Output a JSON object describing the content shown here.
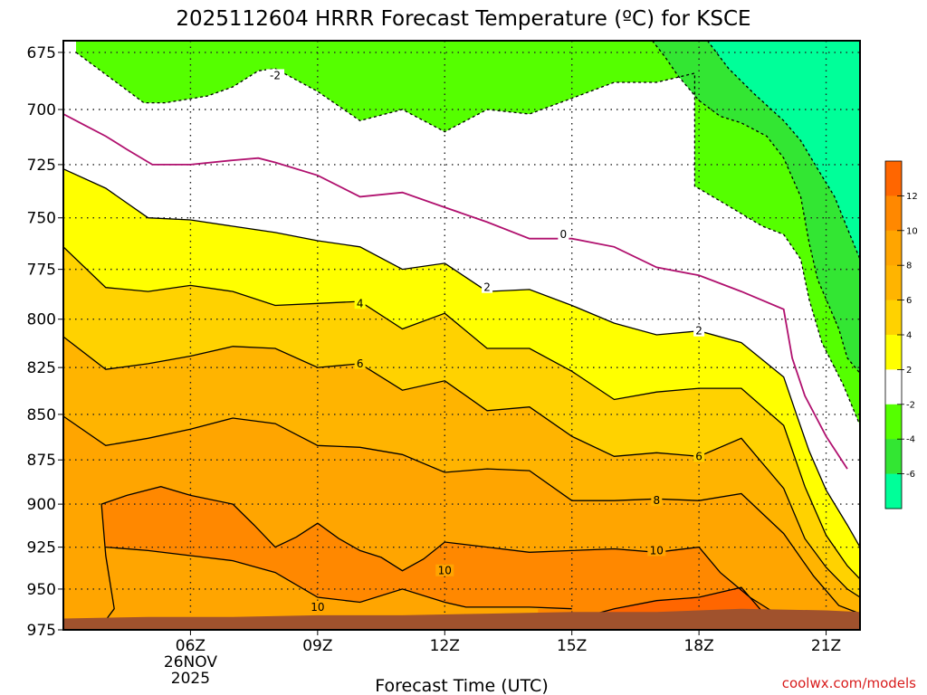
{
  "chart_data": {
    "type": "contour",
    "title": "2025112604 HRRR Forecast Temperature (ºC) for KSCE",
    "xlabel": "Forecast Time (UTC)",
    "ylabel": "",
    "credit": "coolwx.com/models",
    "x_hours": [
      3,
      4,
      5,
      6,
      7,
      8,
      9,
      10,
      11,
      12,
      13,
      14,
      15,
      16,
      17,
      18,
      19,
      20,
      21,
      22
    ],
    "x_ticks": [
      {
        "hour": 6,
        "label": "06Z",
        "date_line1": "26NOV",
        "date_line2": "2025"
      },
      {
        "hour": 9,
        "label": "09Z"
      },
      {
        "hour": 12,
        "label": "12Z"
      },
      {
        "hour": 15,
        "label": "15Z"
      },
      {
        "hour": 18,
        "label": "18Z"
      },
      {
        "hour": 21,
        "label": "21Z"
      }
    ],
    "xlim": [
      3,
      21.8
    ],
    "pressure_levels": [
      675,
      700,
      725,
      750,
      775,
      800,
      825,
      850,
      875,
      900,
      925,
      950,
      975
    ],
    "ylim": [
      975,
      670
    ],
    "y_axis": "pressure (hPa), log scale, inverted",
    "grid": true,
    "color_scale": [
      {
        "min": 12,
        "max": 14,
        "color": "#ff6600"
      },
      {
        "min": 10,
        "max": 12,
        "color": "#ff8800"
      },
      {
        "min": 8,
        "max": 10,
        "color": "#ffa500"
      },
      {
        "min": 6,
        "max": 8,
        "color": "#ffb400"
      },
      {
        "min": 4,
        "max": 6,
        "color": "#ffd200"
      },
      {
        "min": 2,
        "max": 4,
        "color": "#ffff00"
      },
      {
        "min": -2,
        "max": 2,
        "color": "#ffffff"
      },
      {
        "min": -4,
        "max": -2,
        "color": "#55ff00"
      },
      {
        "min": -6,
        "max": -4,
        "color": "#33e633"
      },
      {
        "min": -8,
        "max": -6,
        "color": "#00ff99"
      }
    ],
    "colorbar_ticks": [
      "12",
      "10",
      "8",
      "6",
      "4",
      "2",
      "-2",
      "-4",
      "-6"
    ],
    "colorbar_tick_values": [
      12,
      10,
      8,
      6,
      4,
      2,
      -2,
      -4,
      -6
    ],
    "contour_colors": {
      "zero": "#b0106e",
      "positive": "#000000",
      "negative": "#000000"
    },
    "contours": [
      {
        "value": -2,
        "label": "-2",
        "dashed": true,
        "label_at": [
          8,
          685
        ],
        "points": [
          [
            3.3,
            675
          ],
          [
            4.9,
            697
          ],
          [
            5.4,
            697
          ],
          [
            6.4,
            694
          ],
          [
            7,
            690
          ],
          [
            7.6,
            683
          ],
          [
            8,
            682
          ],
          [
            9,
            692
          ],
          [
            10,
            705
          ],
          [
            11,
            700
          ],
          [
            12,
            710
          ],
          [
            13,
            700
          ],
          [
            14,
            702
          ],
          [
            15,
            695
          ],
          [
            16,
            688
          ],
          [
            17,
            688
          ],
          [
            17.9,
            684
          ],
          [
            17.9,
            735
          ],
          [
            18.5,
            742
          ],
          [
            19,
            748
          ],
          [
            19.5,
            754
          ],
          [
            20,
            758
          ],
          [
            20.4,
            770
          ],
          [
            20.6,
            790
          ],
          [
            20.9,
            812
          ],
          [
            21.4,
            834
          ],
          [
            21.8,
            856
          ]
        ]
      },
      {
        "value": -4,
        "label": "",
        "dashed": true,
        "points": [
          [
            16.9,
            670
          ],
          [
            17.2,
            677
          ],
          [
            17.5,
            685
          ],
          [
            18,
            696
          ],
          [
            18.5,
            703
          ],
          [
            19,
            706
          ],
          [
            19.6,
            712
          ],
          [
            20,
            722
          ],
          [
            20.4,
            740
          ],
          [
            20.6,
            762
          ],
          [
            20.8,
            780
          ],
          [
            21.3,
            805
          ],
          [
            21.5,
            820
          ],
          [
            21.8,
            828
          ]
        ]
      },
      {
        "value": -6,
        "label": "",
        "dashed": true,
        "points": [
          [
            18.2,
            670
          ],
          [
            18.7,
            682
          ],
          [
            19.3,
            693
          ],
          [
            20,
            705
          ],
          [
            20.4,
            714
          ],
          [
            20.8,
            727
          ],
          [
            21.2,
            740
          ],
          [
            21.5,
            755
          ],
          [
            21.8,
            770
          ]
        ]
      },
      {
        "value": 0,
        "label": "0",
        "dashed": false,
        "label_at": [
          14.8,
          758
        ],
        "points": [
          [
            3,
            702
          ],
          [
            3.5,
            707
          ],
          [
            4,
            712
          ],
          [
            4.5,
            718
          ],
          [
            5.1,
            725
          ],
          [
            6,
            725
          ],
          [
            7,
            723
          ],
          [
            7.6,
            722
          ],
          [
            8,
            724
          ],
          [
            9,
            730
          ],
          [
            10,
            740
          ],
          [
            11,
            738
          ],
          [
            12,
            745
          ],
          [
            13,
            752
          ],
          [
            14,
            760
          ],
          [
            15,
            760
          ],
          [
            16,
            764
          ],
          [
            17,
            774
          ],
          [
            18,
            778
          ],
          [
            19,
            786
          ],
          [
            20,
            795
          ],
          [
            20.2,
            820
          ],
          [
            20.5,
            840
          ],
          [
            21,
            862
          ],
          [
            21.5,
            880
          ]
        ]
      },
      {
        "value": 2,
        "label": "2",
        "dashed": false,
        "label_at": [
          [
            13,
            784
          ],
          [
            18,
            806
          ]
        ],
        "points": [
          [
            3,
            727
          ],
          [
            4,
            736
          ],
          [
            5,
            750
          ],
          [
            6,
            751
          ],
          [
            7,
            754
          ],
          [
            8,
            757
          ],
          [
            9,
            761
          ],
          [
            10,
            764
          ],
          [
            11,
            775
          ],
          [
            12,
            772
          ],
          [
            13,
            786
          ],
          [
            14,
            785
          ],
          [
            15,
            793
          ],
          [
            16,
            802
          ],
          [
            17,
            808
          ],
          [
            18,
            806
          ],
          [
            19,
            812
          ],
          [
            20,
            830
          ],
          [
            20.3,
            850
          ],
          [
            20.6,
            870
          ],
          [
            21,
            892
          ],
          [
            21.5,
            912
          ],
          [
            21.8,
            925
          ]
        ]
      },
      {
        "value": 4,
        "label": "4",
        "dashed": false,
        "label_at": [
          10,
          792
        ],
        "points": [
          [
            3,
            764
          ],
          [
            4,
            784
          ],
          [
            5,
            786
          ],
          [
            6,
            783
          ],
          [
            7,
            786
          ],
          [
            8,
            793
          ],
          [
            9,
            792
          ],
          [
            10,
            791
          ],
          [
            11,
            805
          ],
          [
            12,
            797
          ],
          [
            13,
            815
          ],
          [
            14,
            815
          ],
          [
            15,
            827
          ],
          [
            16,
            842
          ],
          [
            17,
            838
          ],
          [
            18,
            836
          ],
          [
            19,
            836
          ],
          [
            20,
            856
          ],
          [
            20.5,
            890
          ],
          [
            21,
            918
          ],
          [
            21.5,
            936
          ],
          [
            21.8,
            944
          ]
        ]
      },
      {
        "value": 6,
        "label": "6",
        "dashed": false,
        "label_at": [
          [
            10,
            823
          ],
          [
            18,
            873
          ]
        ],
        "points": [
          [
            3,
            809
          ],
          [
            4,
            826
          ],
          [
            5,
            823
          ],
          [
            6,
            819
          ],
          [
            7,
            814
          ],
          [
            8,
            815
          ],
          [
            9,
            825
          ],
          [
            10,
            823
          ],
          [
            11,
            837
          ],
          [
            12,
            832
          ],
          [
            13,
            848
          ],
          [
            14,
            846
          ],
          [
            15,
            862
          ],
          [
            16,
            873
          ],
          [
            17,
            871
          ],
          [
            18,
            873
          ],
          [
            19,
            863
          ],
          [
            20,
            891
          ],
          [
            20.5,
            920
          ],
          [
            21,
            937
          ],
          [
            21.5,
            950
          ],
          [
            21.8,
            955
          ]
        ]
      },
      {
        "value": 8,
        "label": "8",
        "dashed": false,
        "label_at": [
          17,
          898
        ],
        "points": [
          [
            3,
            851
          ],
          [
            4,
            867
          ],
          [
            5,
            863
          ],
          [
            6,
            858
          ],
          [
            7,
            852
          ],
          [
            8,
            855
          ],
          [
            9,
            867
          ],
          [
            10,
            868
          ],
          [
            11,
            872
          ],
          [
            12,
            882
          ],
          [
            13,
            880
          ],
          [
            14,
            881
          ],
          [
            15,
            898
          ],
          [
            16,
            898
          ],
          [
            17,
            897
          ],
          [
            18,
            898
          ],
          [
            19,
            894
          ],
          [
            20,
            917
          ],
          [
            20.7,
            942
          ],
          [
            21.3,
            960
          ],
          [
            21.8,
            965
          ]
        ]
      },
      {
        "value": 10,
        "label": "10",
        "dashed": false,
        "label_at": [
          [
            12,
            939
          ],
          [
            17,
            927
          ],
          [
            9,
            961
          ]
        ],
        "points": [
          [
            3,
            971
          ],
          [
            4,
            969
          ],
          [
            4.2,
            962
          ],
          [
            4.0,
            930
          ],
          [
            3.9,
            900
          ],
          [
            4.5,
            895
          ],
          [
            5.3,
            890
          ],
          [
            6,
            895
          ],
          [
            7,
            900
          ],
          [
            7.5,
            912
          ],
          [
            8,
            925
          ],
          [
            8.5,
            919
          ],
          [
            9,
            911
          ],
          [
            9.5,
            920
          ],
          [
            10,
            927
          ],
          [
            10.5,
            931
          ],
          [
            11,
            939
          ],
          [
            11.5,
            932
          ],
          [
            12,
            922
          ],
          [
            13,
            925
          ],
          [
            14,
            928
          ],
          [
            15,
            927
          ],
          [
            16,
            926
          ],
          [
            17,
            928
          ],
          [
            18,
            925
          ],
          [
            18.5,
            940
          ],
          [
            19.2,
            955
          ],
          [
            20,
            968
          ],
          [
            21,
            975
          ],
          [
            21.8,
            975
          ]
        ]
      },
      {
        "value": 10.01,
        "label": "",
        "dashed": false,
        "note": "inner loop of 10 contour",
        "points": [
          [
            4,
            925
          ],
          [
            5,
            927
          ],
          [
            6,
            930
          ],
          [
            7,
            933
          ],
          [
            8,
            940
          ],
          [
            9,
            955
          ],
          [
            10,
            958
          ],
          [
            11,
            950
          ],
          [
            12,
            958
          ],
          [
            12.5,
            961
          ],
          [
            13,
            961
          ],
          [
            14,
            961
          ],
          [
            15,
            962
          ]
        ]
      },
      {
        "value": 12,
        "label": "",
        "dashed": false,
        "points": [
          [
            14.2,
            975
          ],
          [
            15,
            969
          ],
          [
            16,
            962
          ],
          [
            17,
            957
          ],
          [
            18,
            955
          ],
          [
            19,
            949
          ],
          [
            19.7,
            970
          ],
          [
            20,
            975
          ]
        ]
      }
    ],
    "ground": {
      "color": "#a0522d",
      "surface_pressure": [
        [
          3,
          968
        ],
        [
          5,
          967
        ],
        [
          7,
          967
        ],
        [
          9,
          966
        ],
        [
          11,
          966
        ],
        [
          13,
          965
        ],
        [
          15,
          964
        ],
        [
          17,
          964
        ],
        [
          19,
          962
        ],
        [
          21,
          963
        ],
        [
          21.8,
          964
        ]
      ]
    }
  }
}
